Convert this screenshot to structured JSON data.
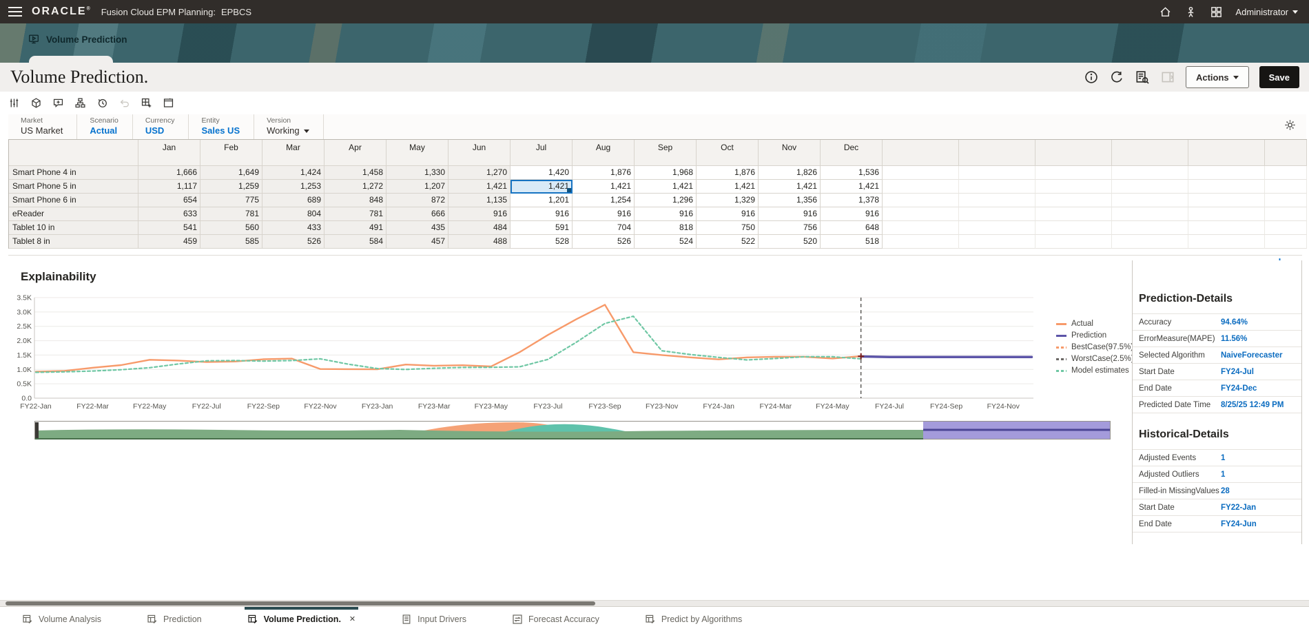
{
  "topbar": {
    "brand": "ORACLE",
    "product": "Fusion Cloud EPM Planning:",
    "app": "EPBCS",
    "user": "Administrator",
    "icons": [
      "home-icon",
      "accessibility-icon",
      "apps-grid-icon"
    ]
  },
  "banner": {
    "active_tab": "Volume Prediction"
  },
  "titlebar": {
    "title": "Volume Prediction.",
    "actions": "Actions",
    "save": "Save",
    "icons": [
      "info-icon",
      "refresh-icon",
      "business-rules-icon",
      "collapse-pane-icon"
    ]
  },
  "toolbar": {
    "icons": [
      "adjust-sliders-icon",
      "cube-icon",
      "add-comment-icon",
      "hierarchy-icon",
      "history-icon",
      "undo-icon",
      "grid-add-icon",
      "window-icon",
      "gear-icon"
    ]
  },
  "pov": {
    "members": [
      {
        "dim": "Market",
        "member": "US Market",
        "link": false,
        "has_dropdown": false
      },
      {
        "dim": "Scenario",
        "member": "Actual",
        "link": true,
        "has_dropdown": false
      },
      {
        "dim": "Currency",
        "member": "USD",
        "link": true,
        "has_dropdown": false
      },
      {
        "dim": "Entity",
        "member": "Sales US",
        "link": true,
        "has_dropdown": false
      },
      {
        "dim": "Version",
        "member": "Working",
        "link": false,
        "has_dropdown": true
      }
    ]
  },
  "grid": {
    "columns": [
      "Jan",
      "Feb",
      "Mar",
      "Apr",
      "May",
      "Jun",
      "Jul",
      "Aug",
      "Sep",
      "Oct",
      "Nov",
      "Dec"
    ],
    "historical_columns": 6,
    "filler_columns": 6,
    "rows": [
      {
        "name": "Smart Phone 4 in",
        "values": [
          "1,666",
          "1,649",
          "1,424",
          "1,458",
          "1,330",
          "1,270",
          "1,420",
          "1,876",
          "1,968",
          "1,876",
          "1,826",
          "1,536"
        ]
      },
      {
        "name": "Smart Phone 5 in",
        "values": [
          "1,117",
          "1,259",
          "1,253",
          "1,272",
          "1,207",
          "1,421",
          "1,421",
          "1,421",
          "1,421",
          "1,421",
          "1,421",
          "1,421"
        ]
      },
      {
        "name": "Smart Phone 6 in",
        "values": [
          "654",
          "775",
          "689",
          "848",
          "872",
          "1,135",
          "1,201",
          "1,254",
          "1,296",
          "1,329",
          "1,356",
          "1,378"
        ]
      },
      {
        "name": "eReader",
        "values": [
          "633",
          "781",
          "804",
          "781",
          "666",
          "916",
          "916",
          "916",
          "916",
          "916",
          "916",
          "916"
        ]
      },
      {
        "name": "Tablet 10 in",
        "values": [
          "541",
          "560",
          "433",
          "491",
          "435",
          "484",
          "591",
          "704",
          "818",
          "750",
          "756",
          "648"
        ]
      },
      {
        "name": "Tablet 8 in",
        "values": [
          "459",
          "585",
          "526",
          "584",
          "457",
          "488",
          "528",
          "526",
          "524",
          "522",
          "520",
          "518"
        ]
      }
    ],
    "selected_cell": {
      "row": 1,
      "col": 6
    }
  },
  "explainability": {
    "title": "Explainability",
    "legend": [
      {
        "label": "Actual",
        "color": "#F79A6A",
        "dashed": false
      },
      {
        "label": "Prediction",
        "color": "#5C55A8",
        "dashed": false
      },
      {
        "label": "BestCase(97.5%)",
        "color": "#F79A6A",
        "dashed": true
      },
      {
        "label": "WorstCase(2.5%)",
        "color": "#6B6865",
        "dashed": true
      },
      {
        "label": "Model estimates",
        "color": "#6FC7A4",
        "dashed": true
      }
    ]
  },
  "prediction_details": {
    "title": "Prediction-Details",
    "rows": [
      {
        "label": "Accuracy",
        "value": "94.64%"
      },
      {
        "label": "ErrorMeasure(MAPE)",
        "value": "11.56%"
      },
      {
        "label": "Selected Algorithm",
        "value": "NaiveForecaster"
      },
      {
        "label": "Start Date",
        "value": "FY24-Jul"
      },
      {
        "label": "End Date",
        "value": "FY24-Dec"
      },
      {
        "label": "Predicted Date Time",
        "value": "8/25/25 12:49 PM"
      }
    ]
  },
  "historical_details": {
    "title": "Historical-Details",
    "rows": [
      {
        "label": "Adjusted Events",
        "value": "1"
      },
      {
        "label": "Adjusted Outliers",
        "value": "1"
      },
      {
        "label": "Filled-in MissingValues",
        "value": "28"
      },
      {
        "label": "Start Date",
        "value": "FY22-Jan"
      },
      {
        "label": "End Date",
        "value": "FY24-Jun"
      }
    ]
  },
  "bottom_tabs": [
    {
      "label": "Volume Analysis",
      "icon": "form",
      "active": false,
      "closable": false
    },
    {
      "label": "Prediction",
      "icon": "form",
      "active": false,
      "closable": false
    },
    {
      "label": "Volume Prediction.",
      "icon": "form",
      "active": true,
      "closable": true
    },
    {
      "label": "Input Drivers",
      "icon": "table",
      "active": false,
      "closable": false
    },
    {
      "label": "Forecast Accuracy",
      "icon": "forecast",
      "active": false,
      "closable": false
    },
    {
      "label": "Predict by Algorithms",
      "icon": "form",
      "active": false,
      "closable": false
    }
  ],
  "chart_data": {
    "type": "line",
    "title": "Explainability",
    "x": [
      "FY22-Jan",
      "FY22-Feb",
      "FY22-Mar",
      "FY22-Apr",
      "FY22-May",
      "FY22-Jun",
      "FY22-Jul",
      "FY22-Aug",
      "FY22-Sep",
      "FY22-Oct",
      "FY22-Nov",
      "FY22-Dec",
      "FY23-Jan",
      "FY23-Feb",
      "FY23-Mar",
      "FY23-Apr",
      "FY23-May",
      "FY23-Jun",
      "FY23-Jul",
      "FY23-Aug",
      "FY23-Sep",
      "FY23-Oct",
      "FY23-Nov",
      "FY23-Dec",
      "FY24-Jan",
      "FY24-Feb",
      "FY24-Mar",
      "FY24-Apr",
      "FY24-May",
      "FY24-Jun",
      "FY24-Jul",
      "FY24-Aug",
      "FY24-Sep",
      "FY24-Oct",
      "FY24-Nov",
      "FY24-Dec"
    ],
    "x_label_step": 2,
    "ylim": [
      0,
      3500
    ],
    "yticks": [
      0,
      500,
      1000,
      1500,
      2000,
      2500,
      3000,
      3500
    ],
    "ytick_labels": [
      "0.0",
      "0.5K",
      "1.0K",
      "1.5K",
      "2.0K",
      "2.5K",
      "3.0K",
      "3.5K"
    ],
    "grid": true,
    "legend_position": "right",
    "prediction_boundary_index": 29,
    "series": [
      {
        "name": "Actual",
        "color": "#F79A6A",
        "style": "solid",
        "width": 2.4,
        "values": [
          920,
          950,
          1060,
          1150,
          1335,
          1310,
          1255,
          1275,
          1355,
          1375,
          1015,
          1010,
          1005,
          1170,
          1130,
          1145,
          1105,
          1600,
          2200,
          2750,
          3250,
          1600,
          1500,
          1420,
          1350,
          1420,
          1440,
          1440,
          1380,
          1460,
          null,
          null,
          null,
          null,
          null,
          null
        ]
      },
      {
        "name": "Model estimates",
        "color": "#6FC7A4",
        "style": "dashed",
        "width": 2.2,
        "values": [
          900,
          915,
          945,
          990,
          1060,
          1190,
          1300,
          1310,
          1290,
          1310,
          1370,
          1180,
          1030,
          1000,
          1040,
          1070,
          1075,
          1090,
          1350,
          1950,
          2600,
          2850,
          1650,
          1520,
          1420,
          1330,
          1380,
          1440,
          1440,
          1370,
          null,
          null,
          null,
          null,
          null,
          null
        ]
      },
      {
        "name": "Prediction",
        "color": "#5C55A8",
        "style": "solid",
        "width": 3.5,
        "values": [
          null,
          null,
          null,
          null,
          null,
          null,
          null,
          null,
          null,
          null,
          null,
          null,
          null,
          null,
          null,
          null,
          null,
          null,
          null,
          null,
          null,
          null,
          null,
          null,
          null,
          null,
          null,
          null,
          null,
          1450,
          1430,
          1430,
          1430,
          1430,
          1430,
          1430
        ]
      },
      {
        "name": "BestCase(97.5%)",
        "color": "#F79A6A",
        "style": "dashed",
        "width": 2,
        "values": []
      },
      {
        "name": "WorstCase(2.5%)",
        "color": "#6B6865",
        "style": "dashed",
        "width": 2,
        "values": []
      }
    ]
  }
}
